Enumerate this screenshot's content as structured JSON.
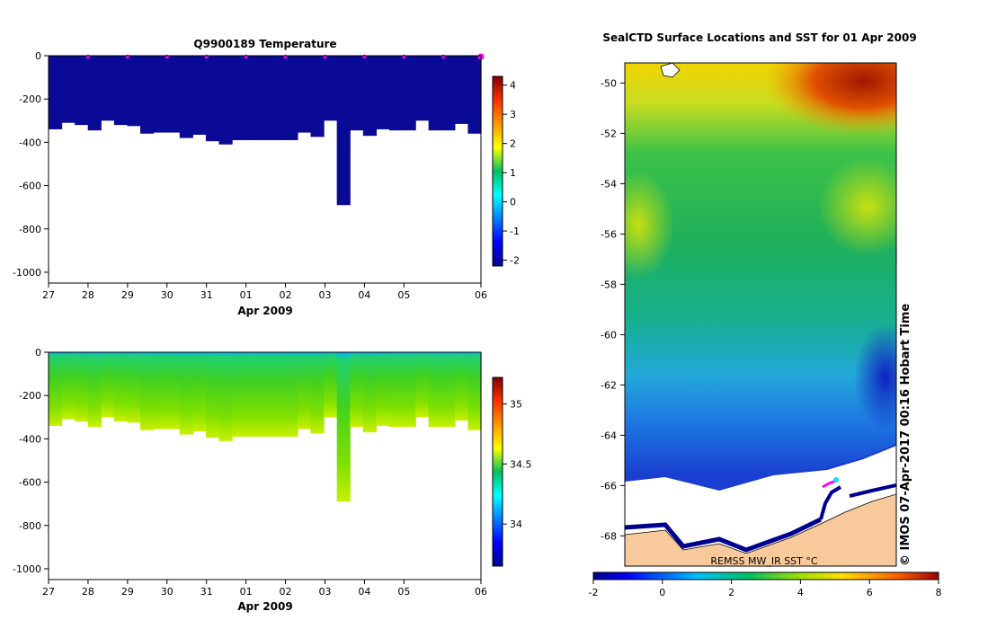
{
  "chart_data": [
    {
      "type": "heatmap",
      "title": "Q9900189  Temperature",
      "xlabel": "Apr 2009",
      "ylabel": "",
      "x_ticks": [
        "27",
        "28",
        "29",
        "30",
        "31",
        "01",
        "02",
        "03",
        "04",
        "05",
        "06"
      ],
      "ylim": [
        -1050,
        0
      ],
      "y_ticks": [
        0,
        -200,
        -400,
        -600,
        -800,
        -1000
      ],
      "colorbar": {
        "min": -2.2,
        "max": 4.3,
        "ticks": [
          4,
          3,
          2,
          1,
          0,
          -1,
          -2
        ]
      },
      "profile_day_start": 27,
      "profile_day_step": 0.333,
      "profile_depths": [
        -340,
        -310,
        -320,
        -345,
        -300,
        -320,
        -325,
        -360,
        -355,
        -355,
        -380,
        -365,
        -395,
        -410,
        -390,
        -390,
        -390,
        -390,
        -390,
        -355,
        -375,
        -300,
        -690,
        -345,
        -370,
        -340,
        -345,
        -345,
        -300,
        -345,
        -345,
        -315,
        -360
      ],
      "surface_markers_x": [
        28,
        29,
        30,
        31,
        32,
        33,
        34,
        35,
        36,
        37,
        37.95
      ],
      "surface_value": -1.6
    },
    {
      "type": "heatmap",
      "title": "",
      "xlabel": "Apr 2009",
      "ylabel": "",
      "x_ticks": [
        "27",
        "28",
        "29",
        "30",
        "31",
        "01",
        "02",
        "03",
        "04",
        "05",
        "06"
      ],
      "ylim": [
        -1050,
        0
      ],
      "y_ticks": [
        0,
        -200,
        -400,
        -600,
        -800,
        -1000
      ],
      "colorbar": {
        "min": 33.65,
        "max": 35.22,
        "ticks": [
          35,
          34.5,
          34
        ]
      },
      "profile_depths": [
        -340,
        -310,
        -320,
        -345,
        -300,
        -320,
        -325,
        -360,
        -355,
        -355,
        -380,
        -365,
        -395,
        -410,
        -390,
        -390,
        -390,
        -390,
        -390,
        -355,
        -375,
        -300,
        -690,
        -345,
        -370,
        -340,
        -345,
        -345,
        -300,
        -345,
        -345,
        -315,
        -360
      ],
      "surface_value": 34.0,
      "deep_value": 34.68
    },
    {
      "type": "heatmap",
      "title": "SealCTD Surface Locations and SST for 01 Apr 2009",
      "xlabel": "",
      "ylabel": "",
      "ylim": [
        -69.2,
        -49.2
      ],
      "y_ticks": [
        -50,
        -52,
        -54,
        -56,
        -58,
        -60,
        -62,
        -64,
        -66,
        -68
      ],
      "product_label": "REMSS MW_IR SST °C",
      "colorbar": {
        "min": -2,
        "max": 8,
        "ticks": [
          -2,
          0,
          2,
          4,
          6,
          8
        ]
      },
      "side_text": "© IMOS 07-Apr-2017 00:16 Hobart Time"
    }
  ]
}
